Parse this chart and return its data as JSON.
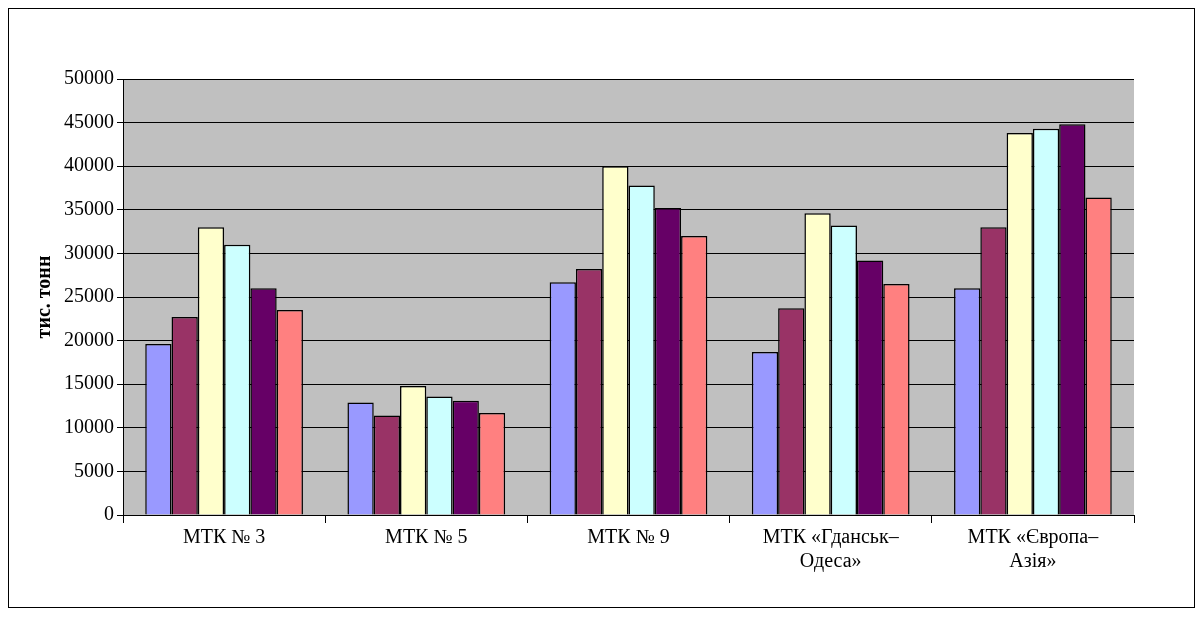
{
  "chart_data": {
    "type": "bar",
    "ylabel": "тис. тонн",
    "categories": [
      "МТК № 3",
      "МТК № 5",
      "МТК № 9",
      "МТК «Гданськ–Одеса»",
      "МТК «Європа–Азія»"
    ],
    "series": [
      {
        "color": "#9999ff",
        "values": [
          19600,
          12900,
          26700,
          18700,
          26000
        ]
      },
      {
        "color": "#993366",
        "values": [
          22700,
          11400,
          28200,
          23700,
          33000
        ]
      },
      {
        "color": "#ffffcc",
        "values": [
          33000,
          14800,
          40000,
          34600,
          43800
        ]
      },
      {
        "color": "#ccffff",
        "values": [
          31000,
          13600,
          37800,
          33200,
          44300
        ]
      },
      {
        "color": "#660066",
        "values": [
          26000,
          13100,
          35200,
          29200,
          44800
        ]
      },
      {
        "color": "#ff8080",
        "values": [
          23500,
          11700,
          32000,
          26500,
          36400
        ]
      }
    ],
    "ylim": [
      0,
      50000
    ],
    "yticks": [
      0,
      5000,
      10000,
      15000,
      20000,
      25000,
      30000,
      35000,
      40000,
      45000,
      50000
    ],
    "grid": "y",
    "legend": false
  }
}
